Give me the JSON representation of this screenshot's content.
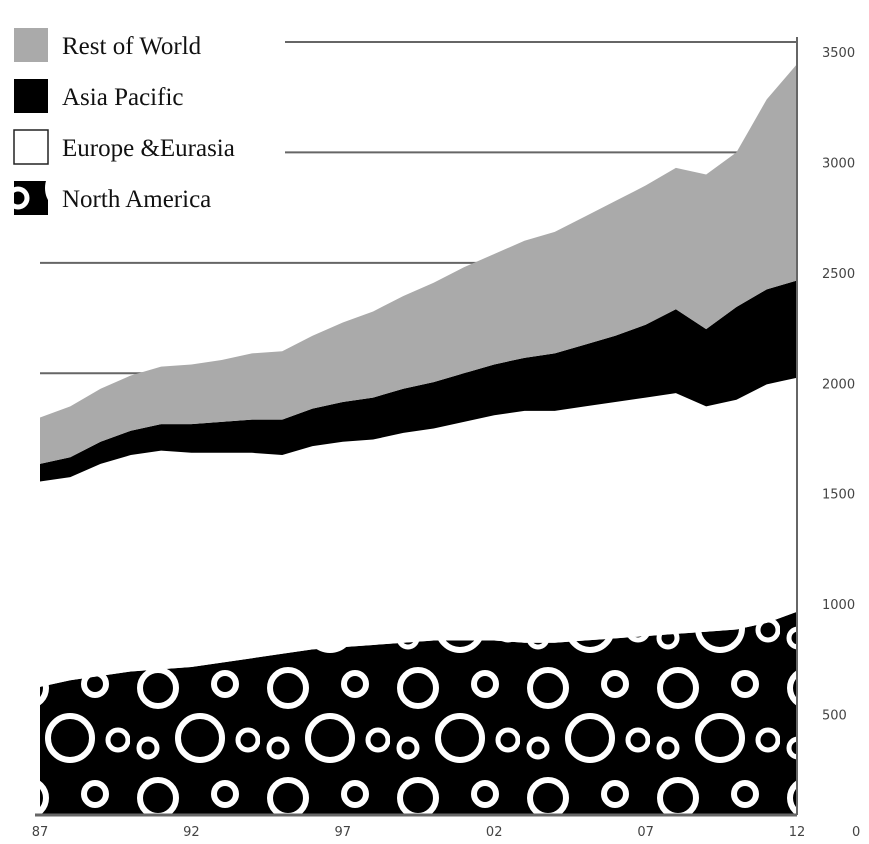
{
  "chart_data": {
    "type": "area",
    "stacked": true,
    "x": [
      1987,
      1988,
      1989,
      1990,
      1991,
      1992,
      1993,
      1994,
      1995,
      1996,
      1997,
      1998,
      1999,
      2000,
      2001,
      2002,
      2003,
      2004,
      2005,
      2006,
      2007,
      2008,
      2009,
      2010,
      2011,
      2012
    ],
    "x_tick_values": [
      1987,
      1992,
      1997,
      2002,
      2007,
      2012
    ],
    "x_tick_labels": [
      "87",
      "92",
      "97",
      "02",
      "07",
      "12"
    ],
    "y_ticks": [
      500,
      1000,
      1500,
      2000,
      2500,
      3000,
      3500
    ],
    "y_zero_label": "0",
    "ylim": [
      0,
      3500
    ],
    "grid": "horizontal",
    "legend_position": "top-left",
    "series": [
      {
        "name": "North America",
        "color": "#000000",
        "pattern": "circles",
        "values": [
          580,
          610,
          630,
          650,
          660,
          670,
          690,
          710,
          730,
          750,
          760,
          770,
          780,
          790,
          790,
          790,
          780,
          780,
          790,
          800,
          810,
          820,
          830,
          840,
          870,
          920
        ]
      },
      {
        "name": "Europe &Eurasia",
        "color": "#ffffff",
        "values": [
          930,
          920,
          960,
          980,
          990,
          970,
          950,
          930,
          900,
          920,
          930,
          930,
          950,
          960,
          990,
          1020,
          1050,
          1050,
          1060,
          1070,
          1080,
          1090,
          1020,
          1040,
          1080,
          1060
        ]
      },
      {
        "name": "Asia Pacific",
        "color": "#000000",
        "values": [
          80,
          90,
          100,
          110,
          120,
          130,
          140,
          150,
          160,
          170,
          180,
          190,
          200,
          210,
          220,
          230,
          240,
          260,
          280,
          300,
          330,
          380,
          350,
          420,
          430,
          440
        ]
      },
      {
        "name": "Rest of World",
        "color": "#aaaaaa",
        "values": [
          210,
          230,
          240,
          250,
          260,
          270,
          280,
          300,
          310,
          330,
          360,
          390,
          420,
          450,
          480,
          500,
          530,
          550,
          580,
          610,
          630,
          640,
          700,
          700,
          860,
          980
        ]
      }
    ]
  }
}
